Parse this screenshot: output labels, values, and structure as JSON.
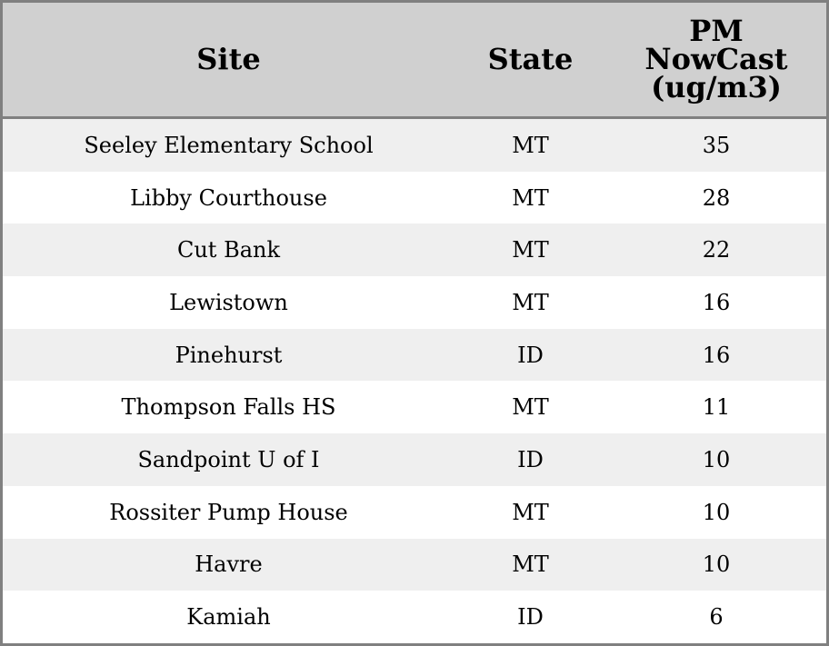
{
  "table": {
    "columns": [
      "Site",
      "State",
      "PM NowCast (ug/m3)"
    ],
    "column_lines": [
      [
        "Site"
      ],
      [
        "State"
      ],
      [
        "PM",
        "NowCast",
        "(ug/m3)"
      ]
    ],
    "rows": [
      [
        "Seeley Elementary School",
        "MT",
        "35"
      ],
      [
        "Libby Courthouse",
        "MT",
        "28"
      ],
      [
        "Cut Bank",
        "MT",
        "22"
      ],
      [
        "Lewistown",
        "MT",
        "16"
      ],
      [
        "Pinehurst",
        "ID",
        "16"
      ],
      [
        "Thompson Falls HS",
        "MT",
        "11"
      ],
      [
        "Sandpoint U of I",
        "ID",
        "10"
      ],
      [
        "Rossiter Pump House",
        "MT",
        "10"
      ],
      [
        "Havre",
        "MT",
        "10"
      ],
      [
        "Kamiah",
        "ID",
        "6"
      ]
    ]
  },
  "colors": {
    "header_bg": "#d0d0d0",
    "stripe_bg": "#efefef",
    "border": "#808080"
  }
}
